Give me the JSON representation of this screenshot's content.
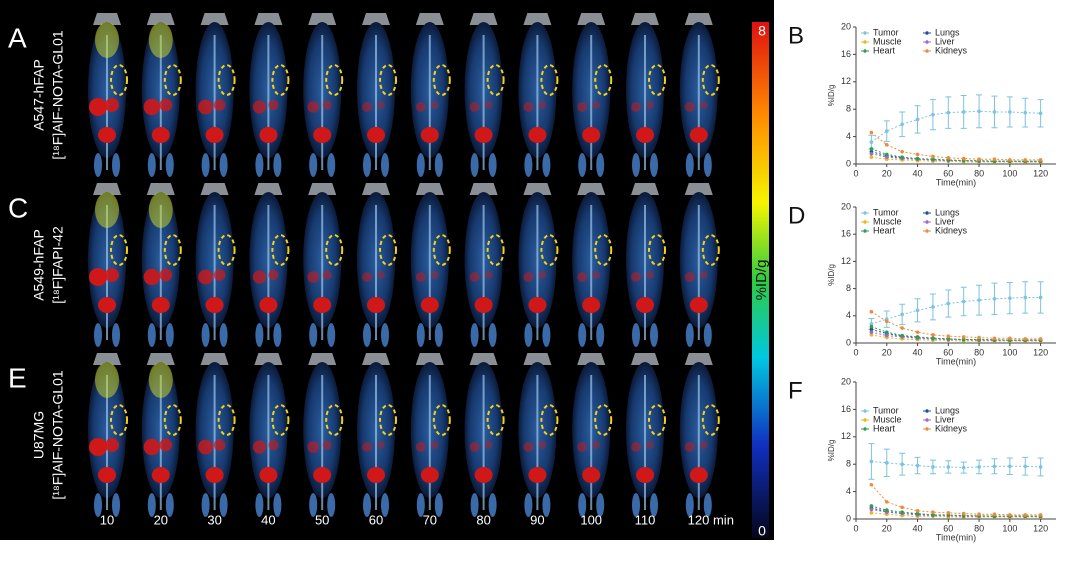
{
  "image_panel": {
    "panel_labels": [
      "A",
      "C",
      "E"
    ],
    "row_labels": [
      [
        "A547-hFAP",
        "[¹⁸F]AlF-NOTA-GL01"
      ],
      [
        "A549-hFAP",
        "[¹⁸F]FAPI-42"
      ],
      [
        "U87MG",
        "[¹⁸F]AlF-NOTA-GL01"
      ]
    ],
    "time_labels": [
      "10",
      "20",
      "30",
      "40",
      "50",
      "60",
      "70",
      "80",
      "90",
      "100",
      "110",
      "120 min"
    ],
    "colorbar": {
      "max_label": "8",
      "min_label": "0",
      "unit": "%ID/g"
    }
  },
  "chart_data": [
    {
      "type": "line",
      "panel": "B",
      "ylabel": "%ID/g",
      "xlabel": "Time(min)",
      "x": [
        10,
        20,
        30,
        40,
        50,
        60,
        70,
        80,
        90,
        100,
        110,
        120
      ],
      "xlim": [
        0,
        130
      ],
      "xticks": [
        0,
        20,
        40,
        60,
        80,
        100,
        120
      ],
      "ylim": [
        0,
        20
      ],
      "yticks": [
        0,
        4,
        8,
        12,
        16,
        20
      ],
      "series": [
        {
          "name": "Tumor",
          "color": "#7cc3df",
          "values": [
            3.2,
            4.8,
            5.8,
            6.5,
            7.2,
            7.5,
            7.6,
            7.7,
            7.6,
            7.6,
            7.5,
            7.4
          ],
          "errors": [
            1.0,
            1.5,
            1.8,
            2.0,
            2.2,
            2.3,
            2.4,
            2.4,
            2.3,
            2.2,
            2.1,
            2.0
          ]
        },
        {
          "name": "Lungs",
          "color": "#1f4e9c",
          "values": [
            1.8,
            1.2,
            0.9,
            0.7,
            0.6,
            0.5,
            0.5,
            0.4,
            0.4,
            0.4,
            0.3,
            0.3
          ]
        },
        {
          "name": "Muscle",
          "color": "#e8b820",
          "values": [
            1.0,
            0.7,
            0.6,
            0.5,
            0.4,
            0.4,
            0.3,
            0.3,
            0.3,
            0.3,
            0.3,
            0.3
          ]
        },
        {
          "name": "Liver",
          "color": "#9b6bc9",
          "values": [
            1.5,
            1.0,
            0.8,
            0.7,
            0.6,
            0.5,
            0.5,
            0.4,
            0.4,
            0.4,
            0.4,
            0.4
          ]
        },
        {
          "name": "Heart",
          "color": "#2e9e4f",
          "values": [
            2.2,
            1.4,
            1.0,
            0.8,
            0.7,
            0.6,
            0.5,
            0.5,
            0.4,
            0.4,
            0.4,
            0.4
          ]
        },
        {
          "name": "Kidneys",
          "color": "#f08a3c",
          "values": [
            4.6,
            2.8,
            1.8,
            1.4,
            1.1,
            0.9,
            0.8,
            0.7,
            0.7,
            0.6,
            0.6,
            0.6
          ]
        }
      ]
    },
    {
      "type": "line",
      "panel": "D",
      "ylabel": "%ID/g",
      "xlabel": "Time(min)",
      "x": [
        10,
        20,
        30,
        40,
        50,
        60,
        70,
        80,
        90,
        100,
        110,
        120
      ],
      "xlim": [
        0,
        130
      ],
      "xticks": [
        0,
        20,
        40,
        60,
        80,
        100,
        120
      ],
      "ylim": [
        0,
        20
      ],
      "yticks": [
        0,
        4,
        8,
        12,
        16,
        20
      ],
      "series": [
        {
          "name": "Tumor",
          "color": "#7cc3df",
          "values": [
            2.8,
            3.5,
            4.2,
            4.8,
            5.3,
            5.8,
            6.1,
            6.3,
            6.5,
            6.6,
            6.7,
            6.7
          ],
          "errors": [
            0.8,
            1.2,
            1.5,
            1.7,
            1.9,
            2.0,
            2.1,
            2.2,
            2.3,
            2.3,
            2.3,
            2.3
          ]
        },
        {
          "name": "Lungs",
          "color": "#1f4e9c",
          "values": [
            2.0,
            1.4,
            1.0,
            0.8,
            0.7,
            0.6,
            0.5,
            0.5,
            0.4,
            0.4,
            0.4,
            0.4
          ]
        },
        {
          "name": "Muscle",
          "color": "#e8b820",
          "values": [
            1.2,
            0.8,
            0.6,
            0.5,
            0.4,
            0.4,
            0.3,
            0.3,
            0.3,
            0.3,
            0.3,
            0.3
          ]
        },
        {
          "name": "Liver",
          "color": "#9b6bc9",
          "values": [
            1.6,
            1.1,
            0.9,
            0.7,
            0.6,
            0.5,
            0.5,
            0.4,
            0.4,
            0.4,
            0.4,
            0.4
          ]
        },
        {
          "name": "Heart",
          "color": "#2e9e4f",
          "values": [
            2.4,
            1.6,
            1.1,
            0.9,
            0.7,
            0.6,
            0.5,
            0.5,
            0.5,
            0.4,
            0.4,
            0.4
          ]
        },
        {
          "name": "Kidneys",
          "color": "#f08a3c",
          "values": [
            4.6,
            3.2,
            2.2,
            1.6,
            1.2,
            1.0,
            0.9,
            0.8,
            0.7,
            0.7,
            0.6,
            0.6
          ]
        }
      ]
    },
    {
      "type": "line",
      "panel": "F",
      "ylabel": "%ID/g",
      "xlabel": "Time(min)",
      "x": [
        10,
        20,
        30,
        40,
        50,
        60,
        70,
        80,
        90,
        100,
        110,
        120
      ],
      "xlim": [
        0,
        130
      ],
      "xticks": [
        0,
        20,
        40,
        60,
        80,
        100,
        120
      ],
      "ylim": [
        0,
        20
      ],
      "yticks": [
        0,
        4,
        8,
        12,
        16,
        20
      ],
      "series": [
        {
          "name": "Tumor",
          "color": "#7cc3df",
          "values": [
            8.4,
            8.2,
            8.0,
            7.8,
            7.6,
            7.6,
            7.5,
            7.6,
            7.7,
            7.7,
            7.7,
            7.6
          ],
          "errors": [
            2.6,
            2.0,
            1.6,
            1.2,
            1.0,
            0.9,
            0.8,
            1.0,
            1.1,
            1.2,
            1.3,
            1.3
          ]
        },
        {
          "name": "Lungs",
          "color": "#1f4e9c",
          "values": [
            1.6,
            1.1,
            0.8,
            0.7,
            0.6,
            0.5,
            0.5,
            0.4,
            0.4,
            0.4,
            0.4,
            0.3
          ]
        },
        {
          "name": "Muscle",
          "color": "#e8b820",
          "values": [
            0.9,
            0.7,
            0.5,
            0.4,
            0.4,
            0.3,
            0.3,
            0.3,
            0.3,
            0.3,
            0.3,
            0.3
          ]
        },
        {
          "name": "Liver",
          "color": "#9b6bc9",
          "values": [
            1.4,
            1.0,
            0.8,
            0.6,
            0.5,
            0.5,
            0.4,
            0.4,
            0.4,
            0.4,
            0.4,
            0.4
          ]
        },
        {
          "name": "Heart",
          "color": "#2e9e4f",
          "values": [
            1.9,
            1.3,
            1.0,
            0.8,
            0.6,
            0.6,
            0.5,
            0.5,
            0.4,
            0.4,
            0.4,
            0.4
          ]
        },
        {
          "name": "Kidneys",
          "color": "#f08a3c",
          "values": [
            5.0,
            2.5,
            1.7,
            1.2,
            1.0,
            0.9,
            0.8,
            0.7,
            0.7,
            0.6,
            0.6,
            0.6
          ]
        }
      ]
    }
  ]
}
